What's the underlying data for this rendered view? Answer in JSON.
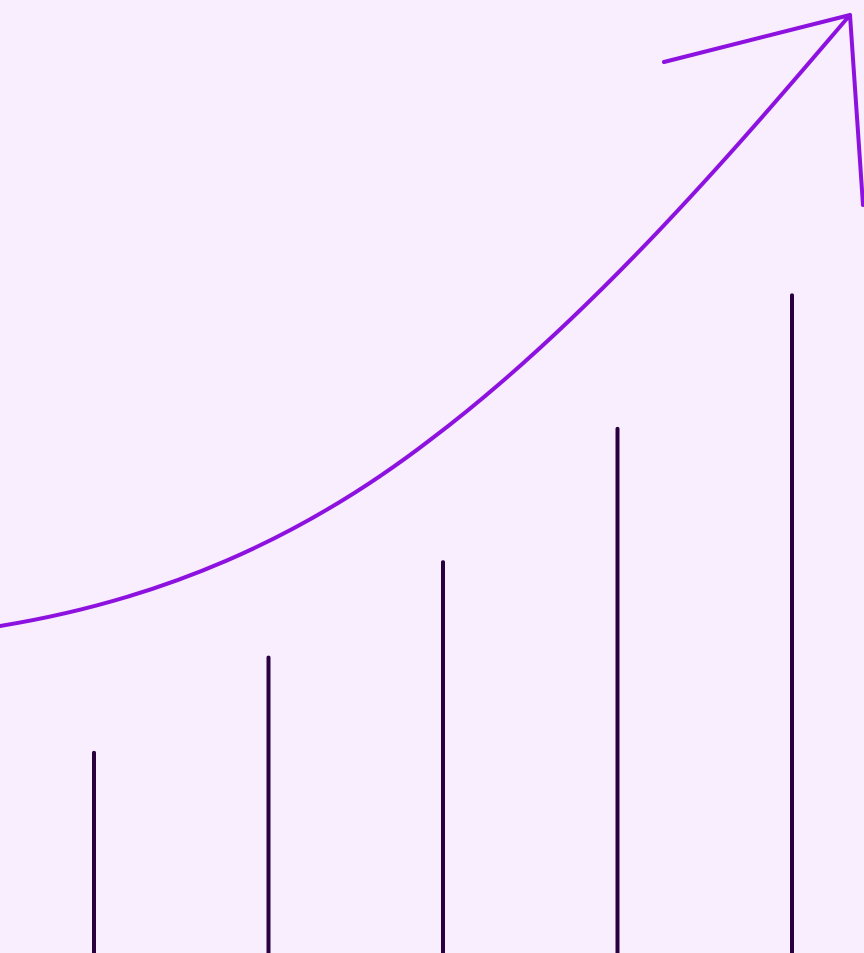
{
  "illustration": {
    "icon": "growth-chart-icon",
    "bar_count": 5,
    "bar_levels": [
      0.21,
      0.31,
      0.41,
      0.55,
      0.69
    ]
  },
  "colors": {
    "background": "#F9EEFD",
    "bars": "#2A0040",
    "trend_arrow": "#8E12DF"
  }
}
